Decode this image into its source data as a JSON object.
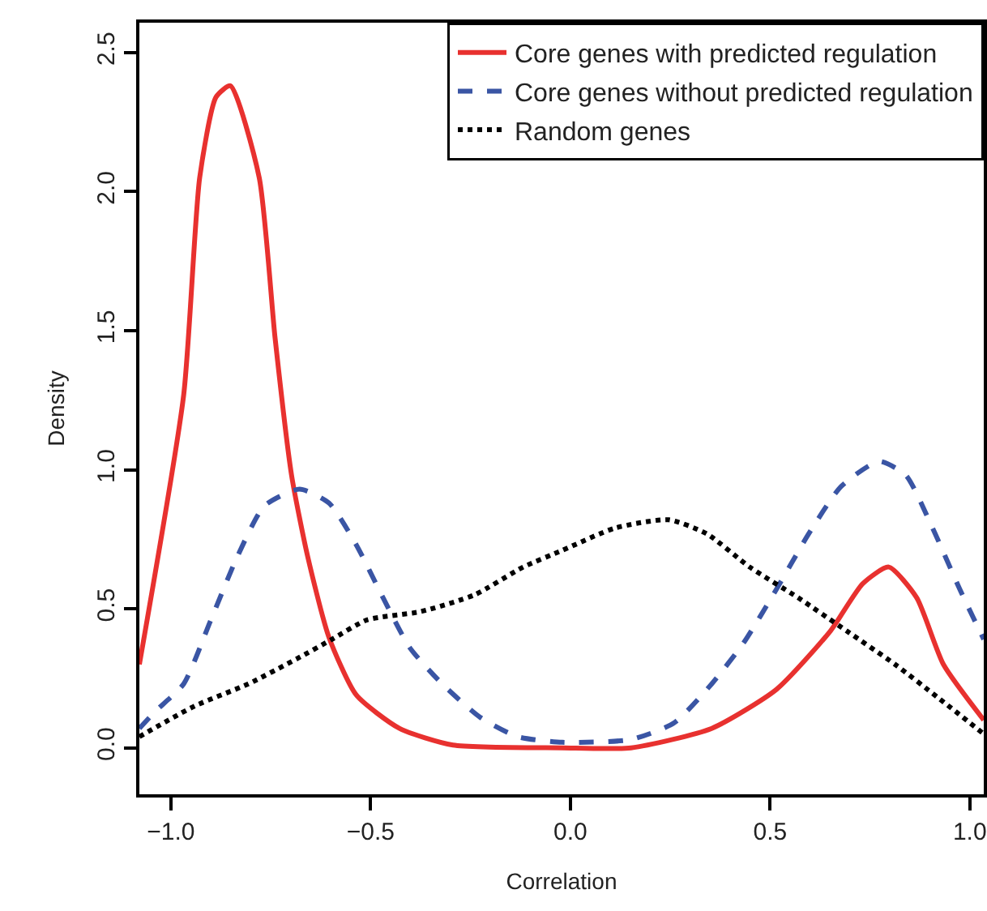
{
  "chart_data": {
    "type": "line",
    "xlabel": "Correlation",
    "ylabel": "Density",
    "xlim": [
      -1.079,
      1.035
    ],
    "ylim": [
      -0.167,
      2.607
    ],
    "xticks": [
      {
        "value": -1,
        "label": "−1.0"
      },
      {
        "value": -0.5,
        "label": "−0.5"
      },
      {
        "value": 0,
        "label": "0.0"
      },
      {
        "value": 0.5,
        "label": "0.5"
      },
      {
        "value": 1,
        "label": "1.0"
      }
    ],
    "yticks": [
      {
        "value": 0,
        "label": "0.0"
      },
      0.5,
      {
        "value": 1,
        "label": "1.0"
      },
      1.5,
      {
        "value": 2,
        "label": "2.0"
      },
      2.5
    ],
    "legend": "top right",
    "marker": "none",
    "series": [
      {
        "name": "Core genes with predicted regulation",
        "color": "#e8312f",
        "line_style": "solid",
        "x": [
          -1.079,
          -0.968,
          -0.928,
          -0.887,
          -0.851,
          -0.779,
          -0.739,
          -0.698,
          -0.658,
          -0.605,
          -0.536,
          -0.428,
          -0.294,
          -0.02,
          0.152,
          0.354,
          0.516,
          0.651,
          0.732,
          0.797,
          0.867,
          0.934,
          1.035
        ],
        "values": [
          0.3,
          1.27,
          2.05,
          2.34,
          2.38,
          2.05,
          1.47,
          0.98,
          0.69,
          0.4,
          0.19,
          0.07,
          0.01,
          0,
          0,
          0.07,
          0.21,
          0.42,
          0.59,
          0.65,
          0.54,
          0.3,
          0.1
        ]
      },
      {
        "name": "Core genes without predicted regulation",
        "color": "#3a55a4",
        "line_style": "dashed",
        "x": [
          -1.079,
          -1.04,
          -0.968,
          -0.9,
          -0.833,
          -0.766,
          -0.678,
          -0.604,
          -0.536,
          -0.469,
          -0.402,
          -0.321,
          -0.226,
          -0.132,
          -0.02,
          0.152,
          0.26,
          0.354,
          0.435,
          0.516,
          0.597,
          0.678,
          0.773,
          0.84,
          0.907,
          0.975,
          1.035
        ],
        "values": [
          0.07,
          0.13,
          0.23,
          0.46,
          0.69,
          0.87,
          0.93,
          0.88,
          0.73,
          0.54,
          0.36,
          0.23,
          0.11,
          0.04,
          0.02,
          0.03,
          0.09,
          0.23,
          0.38,
          0.57,
          0.77,
          0.94,
          1.03,
          0.98,
          0.79,
          0.57,
          0.39
        ]
      },
      {
        "name": "Random genes",
        "color": "#000000",
        "line_style": "dotted",
        "x": [
          -1.079,
          -0.941,
          -0.806,
          -0.685,
          -0.597,
          -0.509,
          -0.374,
          -0.24,
          -0.118,
          -0.02,
          0.111,
          0.246,
          0.341,
          0.449,
          0.57,
          0.692,
          0.813,
          0.921,
          1.035
        ],
        "values": [
          0.04,
          0.15,
          0.23,
          0.32,
          0.39,
          0.46,
          0.49,
          0.55,
          0.65,
          0.71,
          0.79,
          0.82,
          0.77,
          0.65,
          0.54,
          0.42,
          0.3,
          0.18,
          0.05
        ]
      }
    ]
  }
}
